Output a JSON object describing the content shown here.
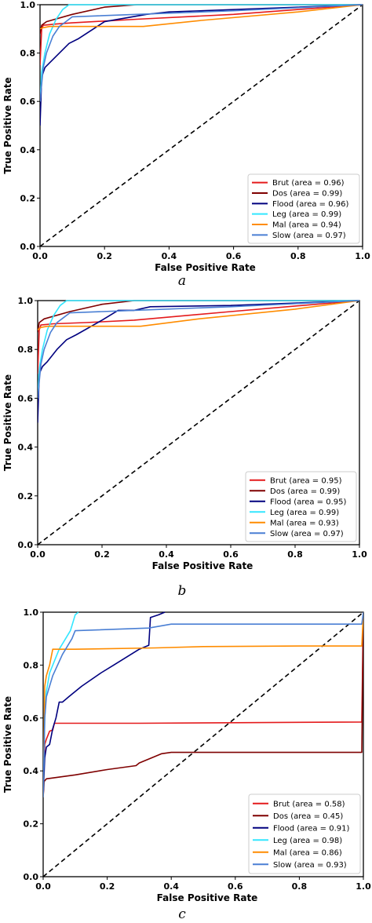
{
  "chart_data": [
    {
      "type": "line",
      "caption": "a",
      "xlabel": "False Positive Rate",
      "ylabel": "True Positive Rate",
      "xlim": [
        0,
        1
      ],
      "ylim": [
        0,
        1
      ],
      "x_ticks": [
        "0.0",
        "0.2",
        "0.4",
        "0.6",
        "0.8",
        "1.0"
      ],
      "y_ticks": [
        "0.0",
        "0.2",
        "0.4",
        "0.6",
        "0.8",
        "1.0"
      ],
      "grid": false,
      "legend_position": "lower-right",
      "diagonal": true,
      "series": [
        {
          "name": "Brut (area = 0.96)",
          "color": "#e41a1c",
          "points": [
            [
              0,
              0.75
            ],
            [
              0.005,
              0.9
            ],
            [
              0.01,
              0.915
            ],
            [
              0.05,
              0.92
            ],
            [
              0.1,
              0.925
            ],
            [
              0.3,
              0.94
            ],
            [
              0.6,
              0.96
            ],
            [
              1,
              1
            ]
          ]
        },
        {
          "name": "Dos (area = 0.99)",
          "color": "#7f0000",
          "points": [
            [
              0,
              0.88
            ],
            [
              0.005,
              0.915
            ],
            [
              0.02,
              0.93
            ],
            [
              0.1,
              0.96
            ],
            [
              0.2,
              0.99
            ],
            [
              0.3,
              1.0
            ],
            [
              1,
              1
            ]
          ]
        },
        {
          "name": "Flood (area = 0.96)",
          "color": "#00007f",
          "points": [
            [
              0,
              0.5
            ],
            [
              0.005,
              0.7
            ],
            [
              0.015,
              0.74
            ],
            [
              0.03,
              0.76
            ],
            [
              0.06,
              0.8
            ],
            [
              0.09,
              0.84
            ],
            [
              0.12,
              0.86
            ],
            [
              0.2,
              0.93
            ],
            [
              0.33,
              0.96
            ],
            [
              0.4,
              0.97
            ],
            [
              0.6,
              0.98
            ],
            [
              1,
              1
            ]
          ]
        },
        {
          "name": "Leg (area = 0.99)",
          "color": "#33e6ff",
          "points": [
            [
              0,
              0.6
            ],
            [
              0.005,
              0.72
            ],
            [
              0.015,
              0.8
            ],
            [
              0.03,
              0.88
            ],
            [
              0.05,
              0.94
            ],
            [
              0.07,
              0.98
            ],
            [
              0.09,
              1.0
            ],
            [
              1,
              1
            ]
          ]
        },
        {
          "name": "Mal (area = 0.94)",
          "color": "#ff8c00",
          "points": [
            [
              0,
              0.9
            ],
            [
              0.01,
              0.905
            ],
            [
              0.03,
              0.91
            ],
            [
              0.32,
              0.91
            ],
            [
              0.5,
              0.935
            ],
            [
              0.8,
              0.97
            ],
            [
              1,
              1
            ]
          ]
        },
        {
          "name": "Slow (area = 0.97)",
          "color": "#4a7fd4",
          "points": [
            [
              0,
              0.6
            ],
            [
              0.01,
              0.74
            ],
            [
              0.02,
              0.8
            ],
            [
              0.04,
              0.87
            ],
            [
              0.06,
              0.91
            ],
            [
              0.08,
              0.93
            ],
            [
              0.1,
              0.95
            ],
            [
              0.3,
              0.96
            ],
            [
              0.6,
              0.975
            ],
            [
              1,
              1
            ]
          ]
        }
      ]
    },
    {
      "type": "line",
      "caption": "b",
      "xlabel": "False Positive Rate",
      "ylabel": "True Positive Rate",
      "xlim": [
        0,
        1
      ],
      "ylim": [
        0,
        1
      ],
      "x_ticks": [
        "0.0",
        "0.2",
        "0.4",
        "0.6",
        "0.8",
        "1.0"
      ],
      "y_ticks": [
        "0.0",
        "0.2",
        "0.4",
        "0.6",
        "0.8",
        "1.0"
      ],
      "grid": false,
      "legend_position": "lower-right",
      "diagonal": true,
      "series": [
        {
          "name": "Brut (area = 0.95)",
          "color": "#e41a1c",
          "points": [
            [
              0,
              0.7
            ],
            [
              0.005,
              0.88
            ],
            [
              0.01,
              0.9
            ],
            [
              0.05,
              0.905
            ],
            [
              0.15,
              0.91
            ],
            [
              0.3,
              0.92
            ],
            [
              0.6,
              0.955
            ],
            [
              1,
              1
            ]
          ]
        },
        {
          "name": "Dos (area = 0.99)",
          "color": "#7f0000",
          "points": [
            [
              0,
              0.87
            ],
            [
              0.005,
              0.91
            ],
            [
              0.02,
              0.925
            ],
            [
              0.1,
              0.955
            ],
            [
              0.2,
              0.985
            ],
            [
              0.3,
              1.0
            ],
            [
              1,
              1
            ]
          ]
        },
        {
          "name": "Flood (area = 0.95)",
          "color": "#00007f",
          "points": [
            [
              0,
              0.5
            ],
            [
              0.005,
              0.7
            ],
            [
              0.015,
              0.73
            ],
            [
              0.03,
              0.75
            ],
            [
              0.06,
              0.8
            ],
            [
              0.09,
              0.84
            ],
            [
              0.12,
              0.86
            ],
            [
              0.2,
              0.92
            ],
            [
              0.25,
              0.96
            ],
            [
              0.3,
              0.96
            ],
            [
              0.35,
              0.975
            ],
            [
              0.6,
              0.98
            ],
            [
              1,
              1
            ]
          ]
        },
        {
          "name": "Leg (area = 0.99)",
          "color": "#33e6ff",
          "points": [
            [
              0,
              0.6
            ],
            [
              0.005,
              0.72
            ],
            [
              0.015,
              0.8
            ],
            [
              0.03,
              0.88
            ],
            [
              0.05,
              0.94
            ],
            [
              0.07,
              0.98
            ],
            [
              0.09,
              1.0
            ],
            [
              1,
              1
            ]
          ]
        },
        {
          "name": "Mal (area = 0.93)",
          "color": "#ff8c00",
          "points": [
            [
              0,
              0.88
            ],
            [
              0.01,
              0.89
            ],
            [
              0.03,
              0.895
            ],
            [
              0.32,
              0.895
            ],
            [
              0.5,
              0.925
            ],
            [
              0.8,
              0.965
            ],
            [
              1,
              1
            ]
          ]
        },
        {
          "name": "Slow (area = 0.97)",
          "color": "#4a7fd4",
          "points": [
            [
              0,
              0.6
            ],
            [
              0.01,
              0.74
            ],
            [
              0.02,
              0.8
            ],
            [
              0.04,
              0.87
            ],
            [
              0.06,
              0.91
            ],
            [
              0.08,
              0.93
            ],
            [
              0.1,
              0.95
            ],
            [
              0.3,
              0.96
            ],
            [
              0.6,
              0.975
            ],
            [
              1,
              1
            ]
          ]
        }
      ]
    },
    {
      "type": "line",
      "caption": "c",
      "xlabel": "False Positive Rate",
      "ylabel": "True Positive Rate",
      "xlim": [
        0,
        1
      ],
      "ylim": [
        0,
        1
      ],
      "x_ticks": [
        "0.0",
        "0.2",
        "0.4",
        "0.6",
        "0.8",
        "1.0"
      ],
      "y_ticks": [
        "0.0",
        "0.2",
        "0.4",
        "0.6",
        "0.8",
        "1.0"
      ],
      "grid": false,
      "legend_position": "lower-right",
      "diagonal": true,
      "series": [
        {
          "name": "Brut (area = 0.58)",
          "color": "#e41a1c",
          "points": [
            [
              0,
              0.3
            ],
            [
              0.005,
              0.5
            ],
            [
              0.01,
              0.52
            ],
            [
              0.02,
              0.55
            ],
            [
              0.03,
              0.555
            ],
            [
              0.035,
              0.58
            ],
            [
              0.3,
              0.58
            ],
            [
              0.995,
              0.585
            ],
            [
              1,
              1
            ]
          ]
        },
        {
          "name": "Dos (area = 0.45)",
          "color": "#7f0000",
          "points": [
            [
              0,
              0.3
            ],
            [
              0.003,
              0.36
            ],
            [
              0.01,
              0.37
            ],
            [
              0.1,
              0.385
            ],
            [
              0.2,
              0.405
            ],
            [
              0.29,
              0.42
            ],
            [
              0.3,
              0.43
            ],
            [
              0.34,
              0.45
            ],
            [
              0.37,
              0.465
            ],
            [
              0.4,
              0.47
            ],
            [
              0.995,
              0.47
            ],
            [
              1,
              1
            ]
          ]
        },
        {
          "name": "Flood (area = 0.91)",
          "color": "#00007f",
          "points": [
            [
              0,
              0.3
            ],
            [
              0.005,
              0.45
            ],
            [
              0.01,
              0.49
            ],
            [
              0.02,
              0.5
            ],
            [
              0.03,
              0.56
            ],
            [
              0.04,
              0.6
            ],
            [
              0.05,
              0.66
            ],
            [
              0.06,
              0.66
            ],
            [
              0.08,
              0.68
            ],
            [
              0.12,
              0.72
            ],
            [
              0.18,
              0.77
            ],
            [
              0.22,
              0.8
            ],
            [
              0.3,
              0.86
            ],
            [
              0.33,
              0.875
            ],
            [
              0.335,
              0.98
            ],
            [
              0.36,
              0.99
            ],
            [
              0.38,
              1.0
            ]
          ]
        },
        {
          "name": "Leg (area = 0.98)",
          "color": "#33e6ff",
          "points": [
            [
              0,
              0.3
            ],
            [
              0.005,
              0.6
            ],
            [
              0.01,
              0.7
            ],
            [
              0.02,
              0.77
            ],
            [
              0.04,
              0.83
            ],
            [
              0.05,
              0.86
            ],
            [
              0.07,
              0.9
            ],
            [
              0.085,
              0.93
            ],
            [
              0.095,
              0.97
            ],
            [
              0.1,
              0.99
            ],
            [
              0.11,
              1.0
            ]
          ]
        },
        {
          "name": "Mal (area = 0.86)",
          "color": "#ff8c00",
          "points": [
            [
              0,
              0.3
            ],
            [
              0.005,
              0.72
            ],
            [
              0.01,
              0.76
            ],
            [
              0.02,
              0.8
            ],
            [
              0.03,
              0.86
            ],
            [
              0.1,
              0.86
            ],
            [
              0.35,
              0.865
            ],
            [
              0.5,
              0.87
            ],
            [
              0.8,
              0.872
            ],
            [
              0.995,
              0.872
            ],
            [
              1,
              1
            ]
          ]
        },
        {
          "name": "Slow (area = 0.93)",
          "color": "#4a7fd4",
          "points": [
            [
              0,
              0.3
            ],
            [
              0.005,
              0.6
            ],
            [
              0.01,
              0.68
            ],
            [
              0.03,
              0.76
            ],
            [
              0.06,
              0.84
            ],
            [
              0.09,
              0.9
            ],
            [
              0.1,
              0.93
            ],
            [
              0.33,
              0.94
            ],
            [
              0.4,
              0.955
            ],
            [
              0.995,
              0.955
            ],
            [
              1,
              1
            ]
          ]
        }
      ]
    }
  ]
}
